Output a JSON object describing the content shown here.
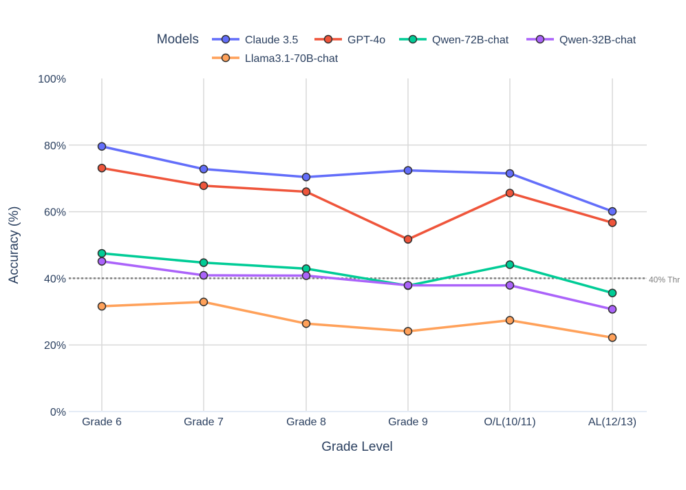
{
  "chart_data": {
    "type": "line",
    "xlabel": "Grade Level",
    "ylabel": "Accuracy (%)",
    "ylim": [
      0,
      100
    ],
    "y_ticks": [
      0,
      20,
      40,
      60,
      80,
      100
    ],
    "y_tick_suffix": "%",
    "grid": true,
    "legend": {
      "title": "Models",
      "placement": "top"
    },
    "categories": [
      "Grade 6",
      "Grade 7",
      "Grade 8",
      "Grade 9",
      "O/L(10/11)",
      "AL(12/13)"
    ],
    "series": [
      {
        "name": "Claude 3.5",
        "color": "#636efa",
        "values": [
          79.6,
          72.8,
          70.4,
          72.4,
          71.5,
          60.1
        ]
      },
      {
        "name": "GPT-4o",
        "color": "#ef553b",
        "values": [
          73.1,
          67.8,
          66.0,
          51.7,
          65.6,
          56.7
        ]
      },
      {
        "name": "Qwen-72B-chat",
        "color": "#00cc96",
        "values": [
          47.5,
          44.7,
          42.9,
          37.8,
          44.1,
          35.6
        ]
      },
      {
        "name": "Qwen-32B-chat",
        "color": "#ab63fa",
        "values": [
          45.1,
          40.9,
          40.8,
          37.9,
          37.9,
          30.7
        ]
      },
      {
        "name": "Llama3.1-70B-chat",
        "color": "#ffa15a",
        "values": [
          31.6,
          32.9,
          26.4,
          24.1,
          27.4,
          22.2
        ]
      }
    ],
    "threshold": {
      "value": 40,
      "label": "40% Thr",
      "color": "#7f7f7f"
    }
  }
}
